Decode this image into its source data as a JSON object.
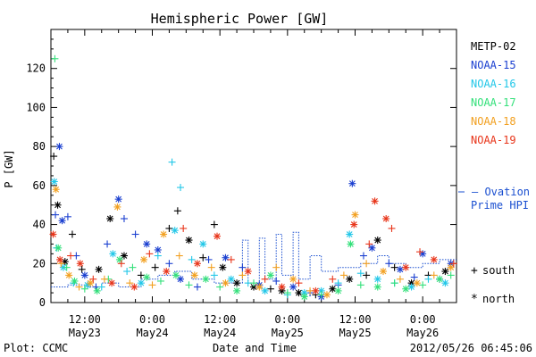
{
  "chart_data": {
    "type": "scatter",
    "title": "Hemispheric Power [GW]",
    "ylabel": "P [GW]",
    "xlabel": "Date and Time",
    "ylim": [
      0,
      140
    ],
    "yticks": [
      0,
      20,
      40,
      60,
      80,
      100,
      120
    ],
    "xlim_hours": [
      0,
      72
    ],
    "x_ticks": [
      {
        "hour": 6,
        "time": "12:00",
        "date": "May23"
      },
      {
        "hour": 18,
        "time": "0:00",
        "date": "May24"
      },
      {
        "hour": 30,
        "time": "12:00",
        "date": "May24"
      },
      {
        "hour": 42,
        "time": "0:00",
        "date": "May25"
      },
      {
        "hour": 54,
        "time": "12:00",
        "date": "May25"
      },
      {
        "hour": 66,
        "time": "0:00",
        "date": "May26"
      }
    ],
    "legend": [
      {
        "name": "METP-02",
        "color": "#000000"
      },
      {
        "name": "NOAA-15",
        "color": "#1a3fd0"
      },
      {
        "name": "NOAA-16",
        "color": "#22c7e8"
      },
      {
        "name": "NOAA-17",
        "color": "#33e07a"
      },
      {
        "name": "NOAA-18",
        "color": "#f2a020"
      },
      {
        "name": "NOAA-19",
        "color": "#e8351a"
      }
    ],
    "ovation_label": [
      "— Ovation",
      "Prime HPI"
    ],
    "ovation_color": "#1a4fd0",
    "marker_legend": [
      {
        "symbol": "+",
        "label": "south"
      },
      {
        "symbol": "*",
        "label": "north"
      }
    ],
    "series": [
      {
        "name": "METP-02",
        "points": [
          [
            0.5,
            75,
            "+"
          ],
          [
            1.2,
            50,
            "*"
          ],
          [
            2.5,
            21,
            "*"
          ],
          [
            3.8,
            35,
            "+"
          ],
          [
            5.5,
            17,
            "+"
          ],
          [
            8.5,
            17,
            "*"
          ],
          [
            10.5,
            43,
            "*"
          ],
          [
            13,
            24,
            "*"
          ],
          [
            16,
            14,
            "+"
          ],
          [
            18.5,
            18,
            "+"
          ],
          [
            21,
            38,
            "+"
          ],
          [
            22.5,
            47,
            "+"
          ],
          [
            24.5,
            32,
            "*"
          ],
          [
            27,
            23,
            "+"
          ],
          [
            29,
            40,
            "+"
          ],
          [
            30.5,
            18,
            "*"
          ],
          [
            33,
            10,
            "*"
          ],
          [
            36,
            8,
            "*"
          ],
          [
            39,
            7,
            "+"
          ],
          [
            41,
            6,
            "*"
          ],
          [
            44,
            5,
            "*"
          ],
          [
            47,
            4,
            "+"
          ],
          [
            50,
            7,
            "*"
          ],
          [
            53,
            12,
            "*"
          ],
          [
            56,
            14,
            "+"
          ],
          [
            58,
            32,
            "*"
          ],
          [
            61,
            18,
            "+"
          ],
          [
            64,
            10,
            "*"
          ],
          [
            67,
            14,
            "+"
          ],
          [
            70,
            16,
            "*"
          ]
        ]
      },
      {
        "name": "NOAA-15",
        "points": [
          [
            0.8,
            45,
            "+"
          ],
          [
            1.5,
            80,
            "*"
          ],
          [
            2,
            42,
            "*"
          ],
          [
            3,
            44,
            "+"
          ],
          [
            4.5,
            24,
            "+"
          ],
          [
            6,
            14,
            "*"
          ],
          [
            8,
            8,
            "+"
          ],
          [
            10,
            30,
            "+"
          ],
          [
            12,
            53,
            "*"
          ],
          [
            13,
            43,
            "+"
          ],
          [
            15,
            35,
            "+"
          ],
          [
            17,
            30,
            "*"
          ],
          [
            19,
            27,
            "*"
          ],
          [
            21,
            20,
            "+"
          ],
          [
            23,
            12,
            "*"
          ],
          [
            26,
            8,
            "+"
          ],
          [
            28,
            22,
            "+"
          ],
          [
            31,
            23,
            "*"
          ],
          [
            34,
            18,
            "+"
          ],
          [
            37,
            9,
            "*"
          ],
          [
            40,
            11,
            "+"
          ],
          [
            43,
            8,
            "*"
          ],
          [
            46,
            5,
            "+"
          ],
          [
            48,
            3,
            "*"
          ],
          [
            51,
            9,
            "+"
          ],
          [
            53.5,
            61,
            "*"
          ],
          [
            55.5,
            24,
            "+"
          ],
          [
            57,
            28,
            "*"
          ],
          [
            60,
            20,
            "+"
          ],
          [
            62,
            17,
            "*"
          ],
          [
            64.5,
            13,
            "+"
          ],
          [
            66,
            25,
            "*"
          ],
          [
            69,
            12,
            "+"
          ],
          [
            71,
            20,
            "*"
          ]
        ]
      },
      {
        "name": "NOAA-16",
        "points": [
          [
            0.6,
            62,
            "*"
          ],
          [
            1,
            28,
            "+"
          ],
          [
            2.2,
            18,
            "*"
          ],
          [
            4,
            10,
            "+"
          ],
          [
            6.5,
            9,
            "*"
          ],
          [
            9,
            8,
            "+"
          ],
          [
            11,
            25,
            "*"
          ],
          [
            13.5,
            16,
            "+"
          ],
          [
            16,
            10,
            "*"
          ],
          [
            19,
            24,
            "+"
          ],
          [
            21.5,
            72,
            "+"
          ],
          [
            23,
            59,
            "+"
          ],
          [
            22,
            37,
            "*"
          ],
          [
            25,
            22,
            "+"
          ],
          [
            27,
            30,
            "*"
          ],
          [
            29,
            14,
            "+"
          ],
          [
            32,
            12,
            "*"
          ],
          [
            35,
            10,
            "+"
          ],
          [
            38,
            6,
            "*"
          ],
          [
            42,
            4,
            "+"
          ],
          [
            45,
            5,
            "*"
          ],
          [
            48,
            6,
            "*"
          ],
          [
            51,
            10,
            "+"
          ],
          [
            53,
            35,
            "*"
          ],
          [
            55,
            15,
            "+"
          ],
          [
            58,
            12,
            "*"
          ],
          [
            61,
            10,
            "+"
          ],
          [
            64,
            8,
            "*"
          ],
          [
            67,
            12,
            "+"
          ],
          [
            70,
            10,
            "*"
          ]
        ]
      },
      {
        "name": "NOAA-17",
        "points": [
          [
            0.7,
            125,
            "+"
          ],
          [
            1.3,
            28,
            "*"
          ],
          [
            2.8,
            18,
            "+"
          ],
          [
            4.2,
            11,
            "*"
          ],
          [
            6,
            7,
            "+"
          ],
          [
            8.2,
            6,
            "*"
          ],
          [
            10.2,
            12,
            "+"
          ],
          [
            12.2,
            22,
            "*"
          ],
          [
            14.5,
            18,
            "+"
          ],
          [
            17,
            13,
            "*"
          ],
          [
            19.5,
            11,
            "+"
          ],
          [
            22.2,
            14,
            "*"
          ],
          [
            24.5,
            9,
            "+"
          ],
          [
            27.5,
            12,
            "*"
          ],
          [
            30,
            8,
            "+"
          ],
          [
            33,
            6,
            "*"
          ],
          [
            36,
            10,
            "+"
          ],
          [
            39,
            14,
            "*"
          ],
          [
            42,
            5,
            "+"
          ],
          [
            45,
            3,
            "*"
          ],
          [
            48,
            4,
            "+"
          ],
          [
            51,
            6,
            "*"
          ],
          [
            53.2,
            30,
            "*"
          ],
          [
            55,
            9,
            "+"
          ],
          [
            58,
            8,
            "*"
          ],
          [
            61,
            10,
            "+"
          ],
          [
            63,
            7,
            "*"
          ],
          [
            66,
            9,
            "+"
          ],
          [
            69,
            12,
            "*"
          ],
          [
            71,
            14,
            "+"
          ]
        ]
      },
      {
        "name": "NOAA-18",
        "points": [
          [
            0.9,
            58,
            "*"
          ],
          [
            1.8,
            20,
            "+"
          ],
          [
            3.2,
            14,
            "*"
          ],
          [
            5,
            8,
            "+"
          ],
          [
            7,
            10,
            "*"
          ],
          [
            9.5,
            12,
            "+"
          ],
          [
            11.8,
            49,
            "*"
          ],
          [
            14,
            10,
            "+"
          ],
          [
            16.5,
            22,
            "*"
          ],
          [
            18,
            9,
            "+"
          ],
          [
            20,
            35,
            "*"
          ],
          [
            22.8,
            24,
            "+"
          ],
          [
            25.5,
            14,
            "*"
          ],
          [
            28.5,
            18,
            "+"
          ],
          [
            31,
            10,
            "*"
          ],
          [
            34,
            14,
            "+"
          ],
          [
            37,
            8,
            "*"
          ],
          [
            40,
            18,
            "+"
          ],
          [
            43,
            12,
            "*"
          ],
          [
            46,
            6,
            "+"
          ],
          [
            49,
            4,
            "*"
          ],
          [
            52,
            14,
            "+"
          ],
          [
            54,
            45,
            "*"
          ],
          [
            56,
            20,
            "+"
          ],
          [
            59,
            16,
            "*"
          ],
          [
            62,
            12,
            "+"
          ],
          [
            65,
            10,
            "*"
          ],
          [
            68,
            14,
            "+"
          ],
          [
            71,
            18,
            "*"
          ]
        ]
      },
      {
        "name": "NOAA-19",
        "points": [
          [
            0.4,
            35,
            "*"
          ],
          [
            1.6,
            22,
            "*"
          ],
          [
            3.5,
            24,
            "+"
          ],
          [
            5.2,
            20,
            "*"
          ],
          [
            7.5,
            12,
            "+"
          ],
          [
            10.8,
            10,
            "*"
          ],
          [
            12.5,
            20,
            "+"
          ],
          [
            14.8,
            8,
            "*"
          ],
          [
            17.5,
            25,
            "+"
          ],
          [
            20.5,
            16,
            "*"
          ],
          [
            23.5,
            38,
            "+"
          ],
          [
            26,
            20,
            "*"
          ],
          [
            29.5,
            34,
            "*"
          ],
          [
            32,
            22,
            "+"
          ],
          [
            35,
            16,
            "*"
          ],
          [
            38,
            12,
            "+"
          ],
          [
            41,
            8,
            "*"
          ],
          [
            44,
            10,
            "+"
          ],
          [
            47,
            6,
            "*"
          ],
          [
            50,
            12,
            "+"
          ],
          [
            53.8,
            40,
            "*"
          ],
          [
            56.5,
            30,
            "+"
          ],
          [
            57.5,
            52,
            "*"
          ],
          [
            59.5,
            43,
            "*"
          ],
          [
            60.5,
            38,
            "+"
          ],
          [
            63,
            18,
            "*"
          ],
          [
            65.5,
            26,
            "+"
          ],
          [
            68,
            22,
            "*"
          ],
          [
            71.5,
            20,
            "+"
          ]
        ]
      }
    ],
    "ovation_line": [
      [
        0,
        8
      ],
      [
        3,
        8
      ],
      [
        3,
        9
      ],
      [
        6,
        9
      ],
      [
        6,
        8
      ],
      [
        9,
        8
      ],
      [
        9,
        10
      ],
      [
        12,
        10
      ],
      [
        12,
        8
      ],
      [
        16,
        8
      ],
      [
        16,
        12
      ],
      [
        19,
        12
      ],
      [
        19,
        14
      ],
      [
        22,
        14
      ],
      [
        22,
        16
      ],
      [
        25,
        16
      ],
      [
        25,
        12
      ],
      [
        29,
        12
      ],
      [
        29,
        10
      ],
      [
        34,
        10
      ],
      [
        34,
        32
      ],
      [
        35,
        32
      ],
      [
        35,
        10
      ],
      [
        37,
        10
      ],
      [
        37,
        33
      ],
      [
        38,
        33
      ],
      [
        38,
        12
      ],
      [
        40,
        12
      ],
      [
        40,
        35
      ],
      [
        41,
        35
      ],
      [
        41,
        14
      ],
      [
        43,
        14
      ],
      [
        43,
        36
      ],
      [
        44,
        36
      ],
      [
        44,
        12
      ],
      [
        46,
        12
      ],
      [
        46,
        24
      ],
      [
        48,
        24
      ],
      [
        48,
        16
      ],
      [
        51,
        16
      ],
      [
        51,
        18
      ],
      [
        55,
        18
      ],
      [
        55,
        20
      ],
      [
        58,
        20
      ],
      [
        58,
        24
      ],
      [
        60,
        24
      ],
      [
        60,
        20
      ],
      [
        63,
        20
      ],
      [
        63,
        18
      ],
      [
        66,
        18
      ],
      [
        66,
        20
      ],
      [
        69,
        20
      ],
      [
        69,
        22
      ],
      [
        72,
        22
      ]
    ]
  },
  "footer": {
    "plot_credit": "Plot: CCMC",
    "axis_title": "Date and Time",
    "timestamp": "2012/05/26 06:45:06"
  }
}
